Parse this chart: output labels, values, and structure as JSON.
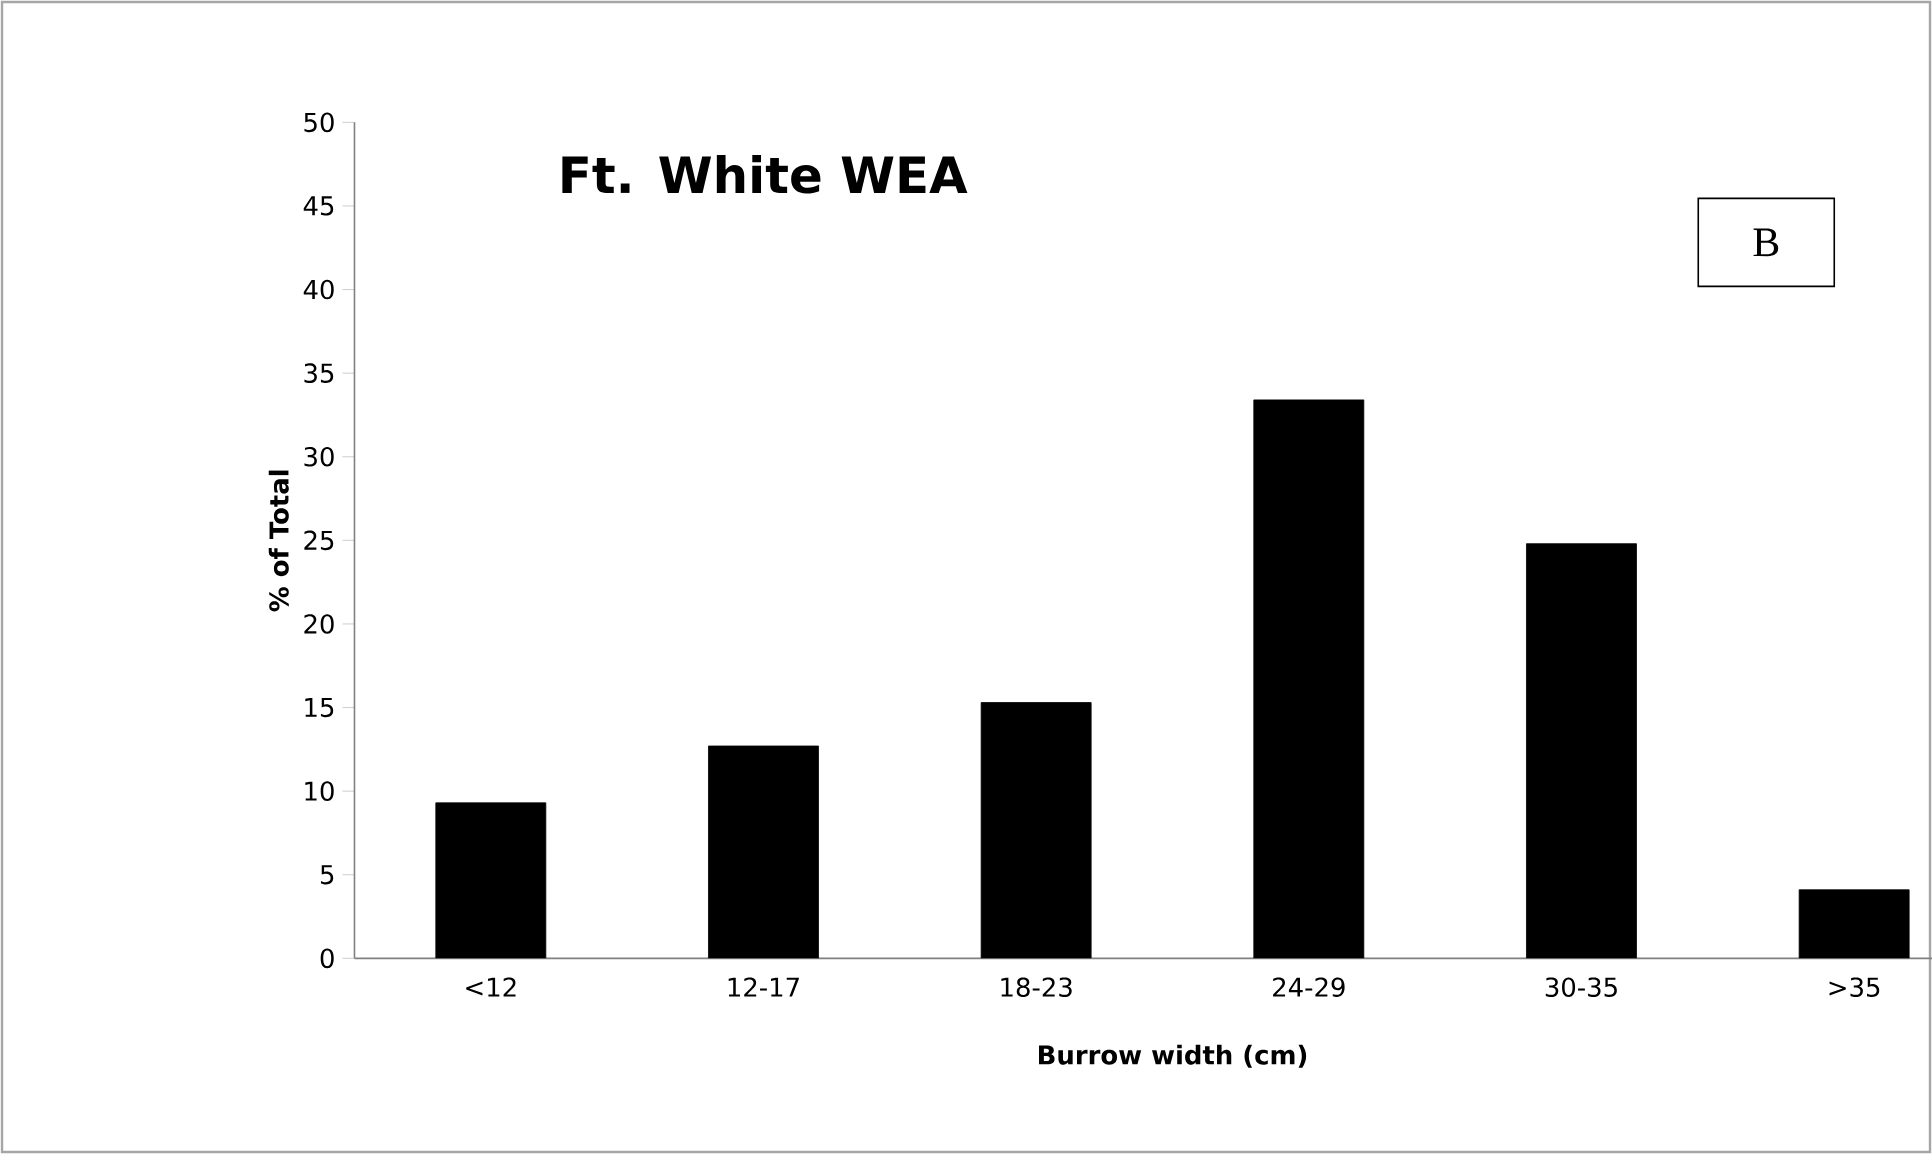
{
  "chart_data": {
    "type": "bar",
    "title": "Ft. White WEA",
    "xlabel": "Burrow width (cm)",
    "ylabel": "% of Total",
    "categories": [
      "<12",
      "12-17",
      "18-23",
      "24-29",
      "30-35",
      ">35"
    ],
    "values": [
      9.3,
      12.7,
      15.3,
      33.4,
      24.8,
      4.1
    ],
    "color": "#000000",
    "ylim": [
      0,
      50
    ],
    "yticks": [
      0,
      5,
      10,
      15,
      20,
      25,
      30,
      35,
      40,
      45,
      50
    ],
    "annotations": [
      "B"
    ]
  }
}
